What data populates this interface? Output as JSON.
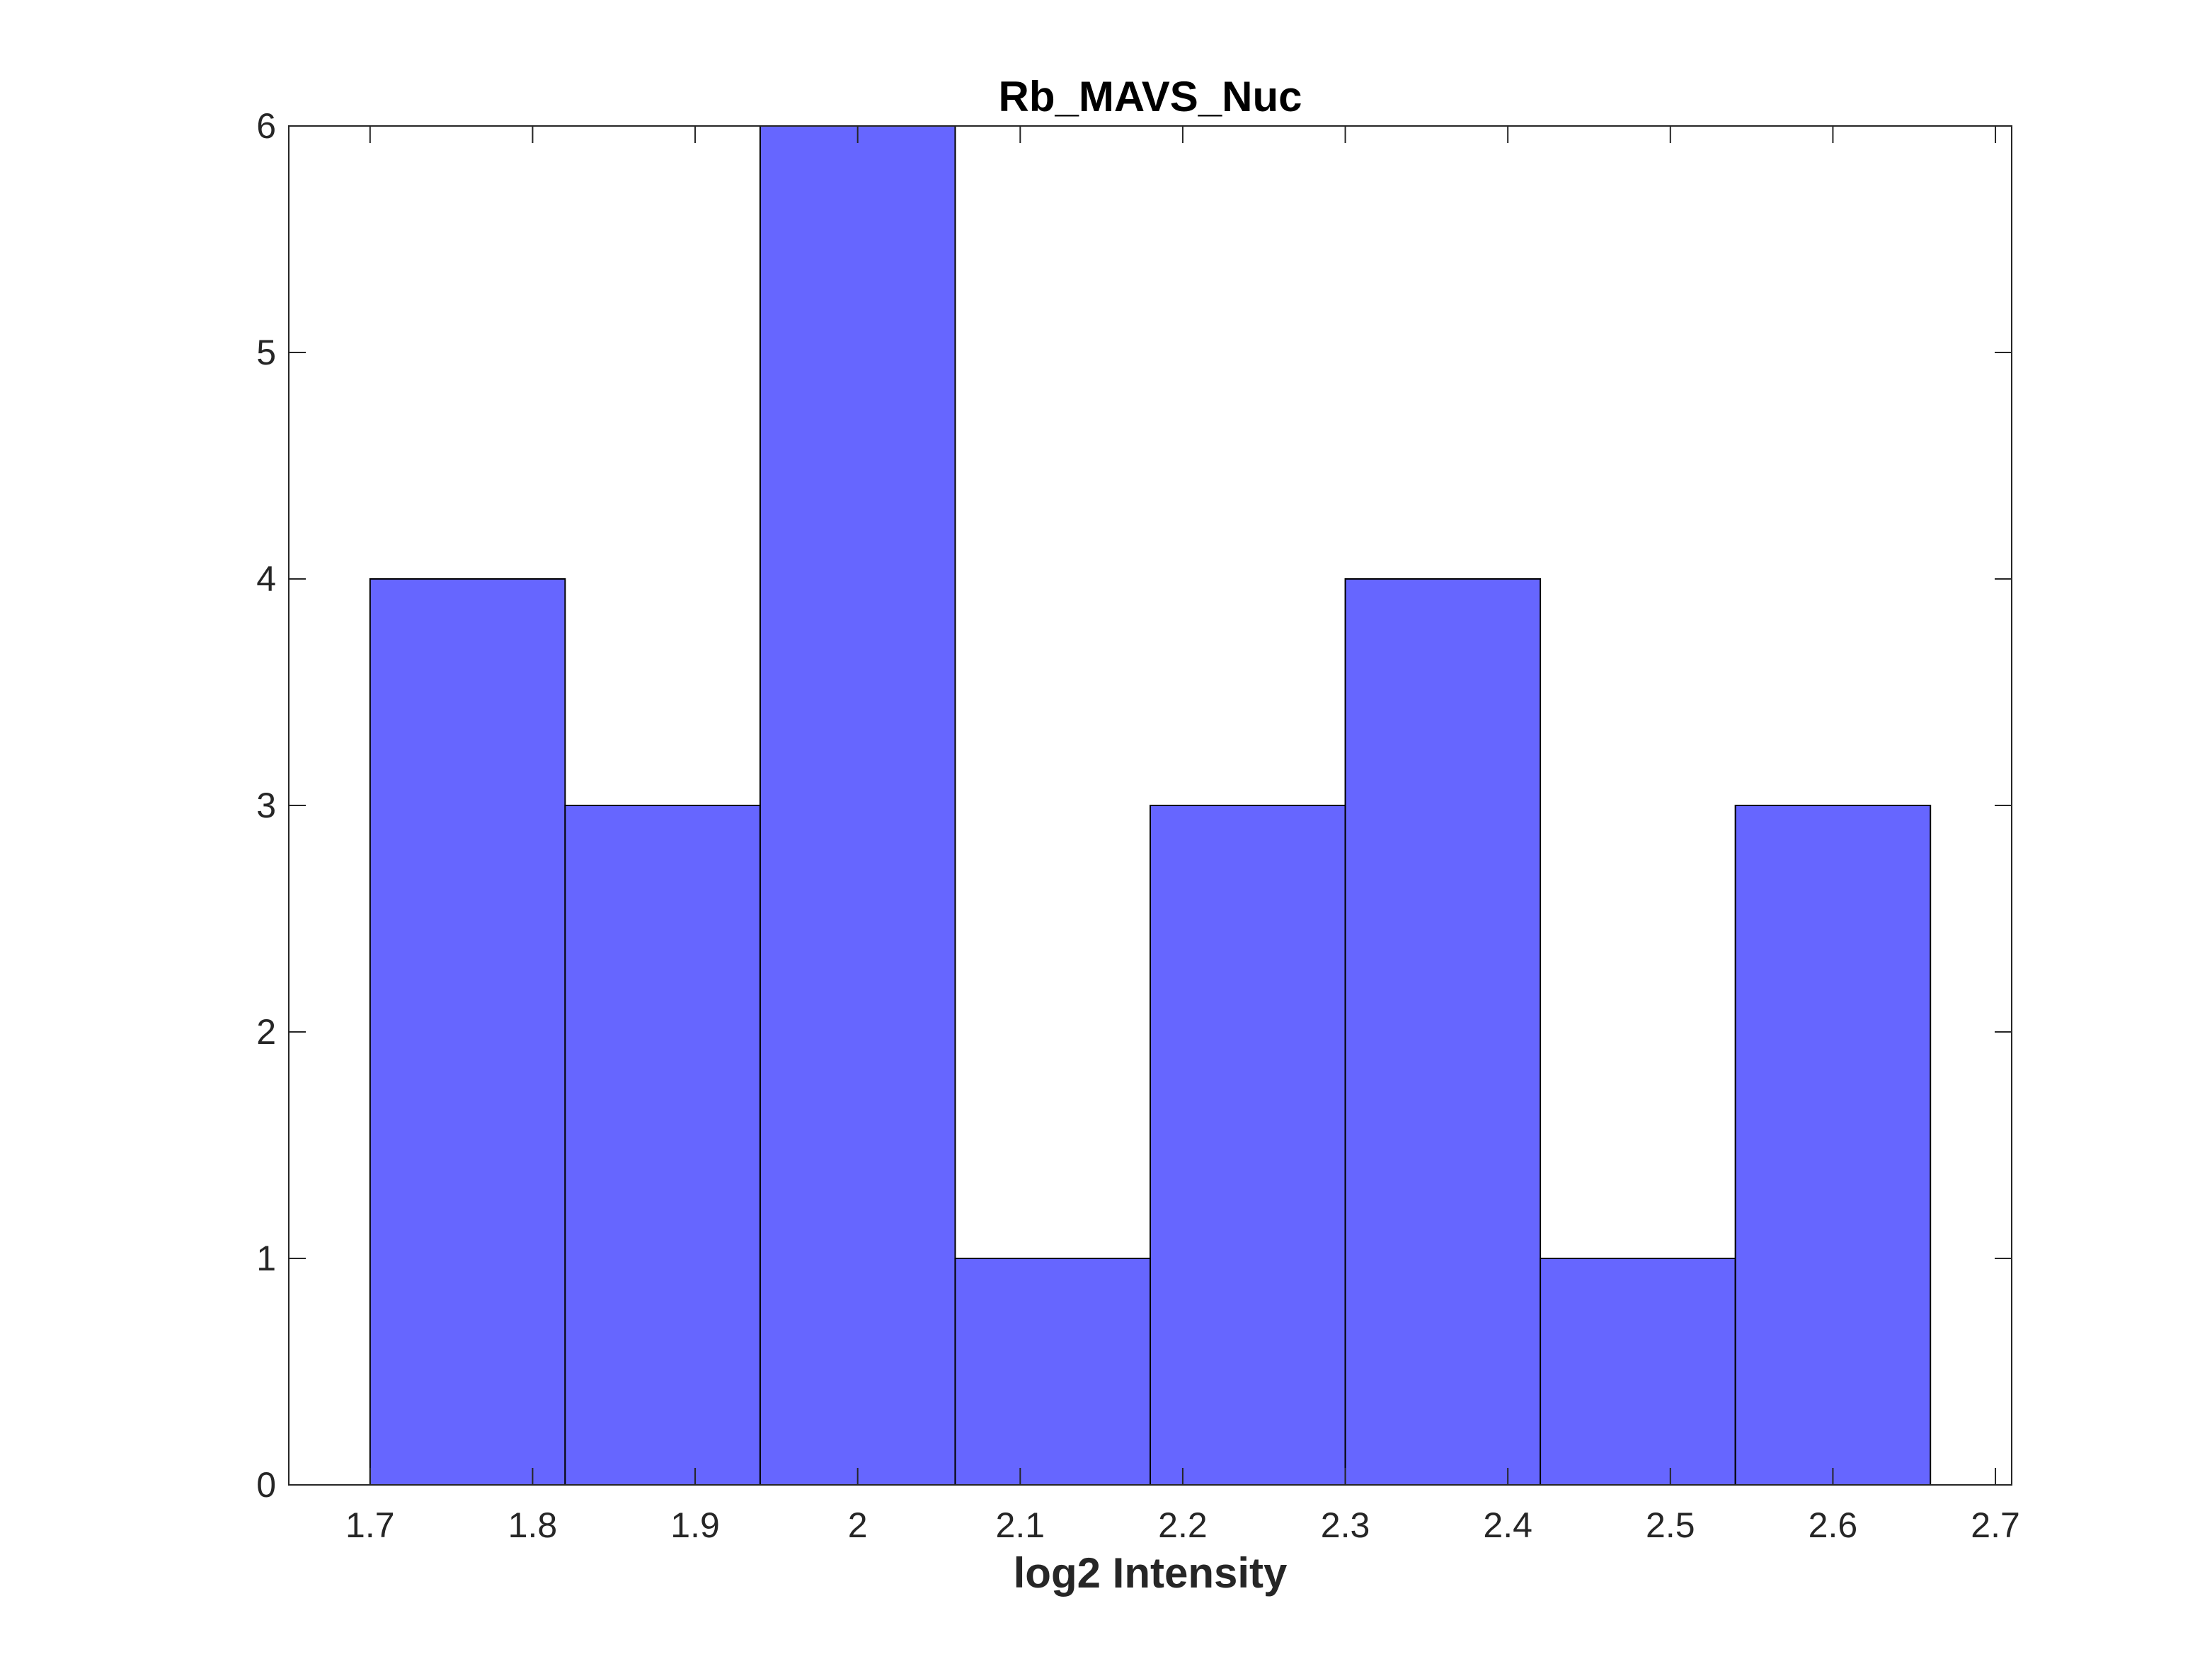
{
  "chart_data": {
    "type": "bar",
    "title": "Rb_MAVS_Nuc",
    "xlabel": "log2 Intensity",
    "ylabel": "",
    "bin_edges": [
      1.7,
      1.82,
      1.94,
      2.06,
      2.18,
      2.3,
      2.42,
      2.54,
      2.66
    ],
    "values": [
      4,
      3,
      6,
      1,
      3,
      4,
      1,
      3
    ],
    "xlim": [
      1.65,
      2.71
    ],
    "ylim": [
      0,
      6
    ],
    "xticks": [
      "1.7",
      "1.8",
      "1.9",
      "2",
      "2.1",
      "2.2",
      "2.3",
      "2.4",
      "2.5",
      "2.6",
      "2.7"
    ],
    "yticks": [
      "0",
      "1",
      "2",
      "3",
      "4",
      "5",
      "6"
    ],
    "bar_color": "#6666ff",
    "edge_color": "#000000",
    "grid": false,
    "legend": "none"
  }
}
